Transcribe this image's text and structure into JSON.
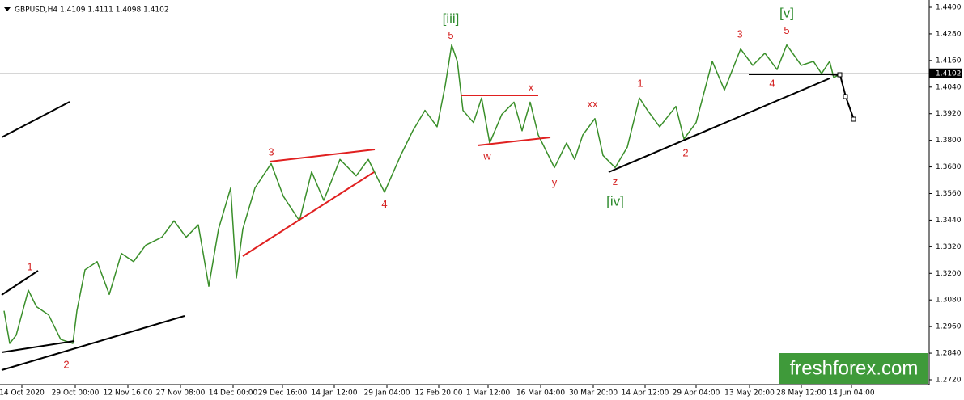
{
  "chart_data": {
    "type": "line",
    "title": "GBPUSD,H4  1.4109 1.4111 1.4098 1.4102",
    "x": [
      5,
      12,
      20,
      35,
      45,
      60,
      75,
      90,
      95,
      105,
      120,
      135,
      150,
      165,
      180,
      200,
      215,
      230,
      245,
      258,
      270,
      285,
      292,
      300,
      315,
      335,
      350,
      370,
      385,
      400,
      420,
      440,
      455,
      475,
      495,
      510,
      525,
      540,
      550,
      558,
      565,
      572,
      585,
      595,
      605,
      620,
      635,
      645,
      655,
      665,
      685,
      700,
      710,
      720,
      735,
      745,
      760,
      775,
      790,
      800,
      815,
      835,
      845,
      860,
      880,
      895,
      915,
      930,
      945,
      960,
      972,
      990,
      1005,
      1015,
      1025,
      1030,
      1036
    ],
    "series": [
      {
        "color": "#3a8f2a",
        "values": [
          1.3031,
          1.2884,
          1.2921,
          1.3124,
          1.305,
          1.3013,
          1.2902,
          1.2884,
          1.3031,
          1.3216,
          1.3253,
          1.3105,
          1.329,
          1.3253,
          1.3327,
          1.3363,
          1.3437,
          1.3363,
          1.3419,
          1.3142,
          1.34,
          1.3585,
          1.3179,
          1.34,
          1.3585,
          1.3695,
          1.3548,
          1.3437,
          1.3658,
          1.3529,
          1.3714,
          1.364,
          1.3714,
          1.3566,
          1.3732,
          1.3843,
          1.3935,
          1.3861,
          1.4046,
          1.423,
          1.4156,
          1.3935,
          1.388,
          1.3991,
          1.3788,
          1.3917,
          1.3972,
          1.3843,
          1.3972,
          1.3824,
          1.3677,
          1.3788,
          1.3714,
          1.3824,
          1.3898,
          1.3732,
          1.3677,
          1.3769,
          1.3991,
          1.3935,
          1.3861,
          1.3953,
          1.3806,
          1.388,
          1.4156,
          1.4027,
          1.4212,
          1.4138,
          1.4193,
          1.4119,
          1.423,
          1.4138,
          1.4156,
          1.4101,
          1.4156,
          1.4083,
          1.4094
        ]
      }
    ],
    "xlim": [
      0,
      1148
    ],
    "xticks": [
      {
        "value": 27,
        "label": "14 Oct 2020"
      },
      {
        "value": 93,
        "label": "29 Oct 00:00"
      },
      {
        "value": 158,
        "label": "12 Nov 16:00"
      },
      {
        "value": 223,
        "label": "27 Nov 08:00"
      },
      {
        "value": 288,
        "label": "14 Dec 00:00"
      },
      {
        "value": 349,
        "label": "29 Dec 16:00"
      },
      {
        "value": 413,
        "label": "14 Jan 12:00"
      },
      {
        "value": 478,
        "label": "29 Jan 04:00"
      },
      {
        "value": 542,
        "label": "12 Feb 20:00"
      },
      {
        "value": 603,
        "label": "1 Mar 12:00"
      },
      {
        "value": 668,
        "label": "16 Mar 04:00"
      },
      {
        "value": 733,
        "label": "30 Mar 20:00"
      },
      {
        "value": 797,
        "label": "14 Apr 12:00"
      },
      {
        "value": 860,
        "label": "29 Apr 04:00"
      },
      {
        "value": 926,
        "label": "13 May 20:00"
      },
      {
        "value": 990,
        "label": "28 May 12:00"
      },
      {
        "value": 1052,
        "label": "14 Jun 04:00"
      }
    ],
    "ylim": [
      1.272,
      1.44
    ],
    "yticks": [
      {
        "value": 1.272,
        "label": "1.2720"
      },
      {
        "value": 1.284,
        "label": "1.2840"
      },
      {
        "value": 1.296,
        "label": "1.2960"
      },
      {
        "value": 1.308,
        "label": "1.3080"
      },
      {
        "value": 1.32,
        "label": "1.3200"
      },
      {
        "value": 1.332,
        "label": "1.3320"
      },
      {
        "value": 1.344,
        "label": "1.3440"
      },
      {
        "value": 1.356,
        "label": "1.3560"
      },
      {
        "value": 1.368,
        "label": "1.3680"
      },
      {
        "value": 1.38,
        "label": "1.3800"
      },
      {
        "value": 1.392,
        "label": "1.3920"
      },
      {
        "value": 1.404,
        "label": "1.4040"
      },
      {
        "value": 1.416,
        "label": "1.4160"
      },
      {
        "value": 1.428,
        "label": "1.4280"
      },
      {
        "value": 1.44,
        "label": "1.4400"
      }
    ],
    "last_price": {
      "value": 1.4102,
      "label": "1.4102"
    },
    "annotations": [
      {
        "text": "1",
        "x": 37,
        "y": 1.3227,
        "color": "#d42020"
      },
      {
        "text": "2",
        "x": 82,
        "y": 1.2785,
        "color": "#d42020"
      },
      {
        "text": "3",
        "x": 335,
        "y": 1.3744,
        "color": "#d42020"
      },
      {
        "text": "4",
        "x": 475,
        "y": 1.3508,
        "color": "#d42020"
      },
      {
        "text": "5",
        "x": 557,
        "y": 1.4271,
        "color": "#d42020"
      },
      {
        "text": "[iii]",
        "x": 557,
        "y": 1.4345,
        "color": "#2e8b2e"
      },
      {
        "text": "x",
        "x": 656,
        "y": 1.4035,
        "color": "#d42020"
      },
      {
        "text": "w",
        "x": 602,
        "y": 1.3725,
        "color": "#d42020"
      },
      {
        "text": "y",
        "x": 685,
        "y": 1.3607,
        "color": "#d42020"
      },
      {
        "text": "xx",
        "x": 732,
        "y": 1.3961,
        "color": "#d42020"
      },
      {
        "text": "z",
        "x": 760,
        "y": 1.3611,
        "color": "#d42020"
      },
      {
        "text": "[iv]",
        "x": 760,
        "y": 1.3522,
        "color": "#2e8b2e"
      },
      {
        "text": "1",
        "x": 791,
        "y": 1.4053,
        "color": "#d42020"
      },
      {
        "text": "2",
        "x": 847,
        "y": 1.374,
        "color": "#d42020"
      },
      {
        "text": "3",
        "x": 914,
        "y": 1.4275,
        "color": "#d42020"
      },
      {
        "text": "4",
        "x": 954,
        "y": 1.4053,
        "color": "#d42020"
      },
      {
        "text": "5",
        "x": 972,
        "y": 1.4293,
        "color": "#d42020"
      },
      {
        "text": "[v]",
        "x": 972,
        "y": 1.437,
        "color": "#2e8b2e"
      }
    ],
    "watermark": "freshforex.com"
  }
}
